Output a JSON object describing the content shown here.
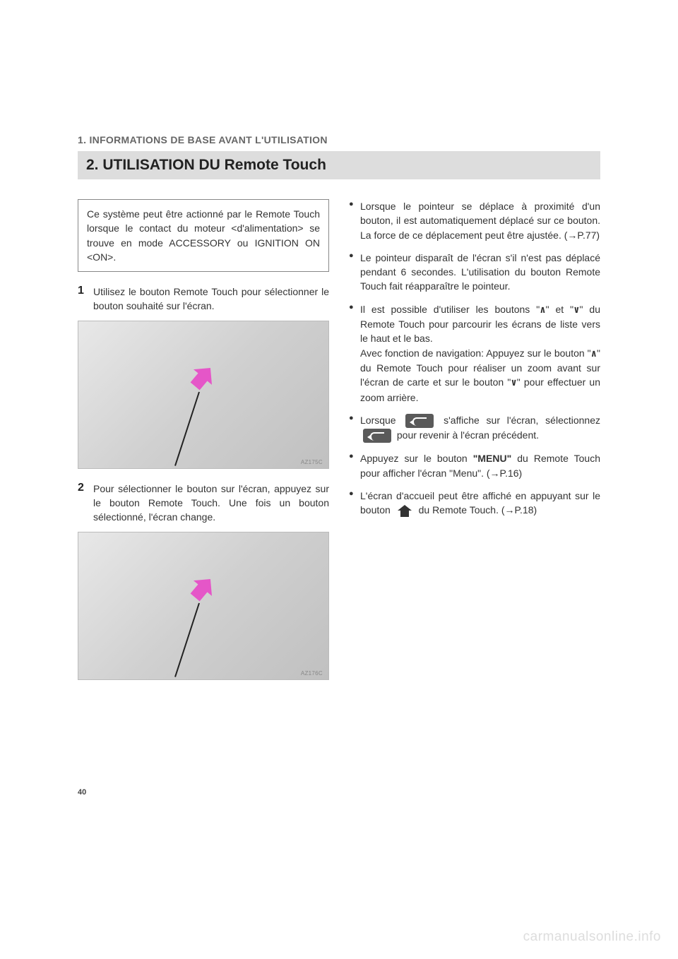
{
  "header": {
    "section": "1. INFORMATIONS DE BASE AVANT L'UTILISATION",
    "title": "2. UTILISATION DU Remote Touch"
  },
  "intro_box": "Ce système peut être actionné par le Remote Touch lorsque le contact du moteur <d'alimentation> se trouve en mode ACCESSORY ou IGNITION ON <ON>.",
  "steps": [
    {
      "num": "1",
      "text": "Utilisez le bouton Remote Touch pour sélectionner le bouton souhaité sur l'écran.",
      "fig_label": "AZ175C"
    },
    {
      "num": "2",
      "text": "Pour sélectionner le bouton sur l'écran, appuyez sur le bouton Remote Touch. Une fois un bouton sélectionné, l'écran change.",
      "fig_label": "AZ176C"
    }
  ],
  "bullets": {
    "b1": "Lorsque le pointeur se déplace à proximité d'un bouton, il est automatiquement déplacé sur ce bouton. La force de ce déplacement peut être ajustée. (→P.77)",
    "b2": "Le pointeur disparaît de l'écran s'il n'est pas déplacé pendant 6 secondes. L'utilisation du bouton Remote Touch fait réapparaître le pointeur.",
    "b3_pre": "Il est possible d'utiliser les boutons \"",
    "b3_mid": "\" et \"",
    "b3_post": "\" du Remote Touch pour parcourir les écrans de liste vers le haut et le bas.",
    "b3_nav_pre": "Avec fonction de navigation: Appuyez sur le bouton \"",
    "b3_nav_mid": "\" du Remote Touch pour réaliser un zoom avant sur l'écran de carte et sur le bouton \"",
    "b3_nav_post": "\" pour effectuer un zoom arrière.",
    "b4_pre": "Lorsque ",
    "b4_mid": " s'affiche sur l'écran, sélectionnez ",
    "b4_post": " pour revenir à l'écran précédent.",
    "b5_pre": "Appuyez sur le bouton ",
    "b5_menu": "\"MENU\"",
    "b5_post": " du Remote Touch pour afficher l'écran \"Menu\". (→P.16)",
    "b6_pre": "L'écran d'accueil peut être affiché en appuyant sur le bouton ",
    "b6_post": " du Remote Touch. (→P.18)"
  },
  "carets": {
    "up": "∧",
    "down": "∨"
  },
  "page_number": "40",
  "watermark": "carmanualsonline.info"
}
